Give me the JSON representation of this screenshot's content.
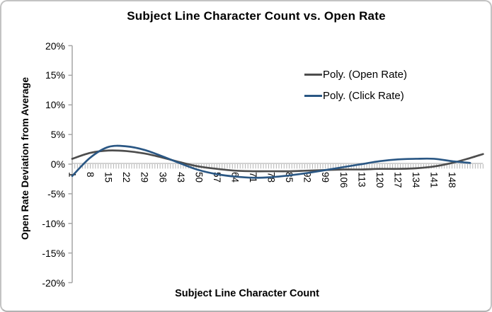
{
  "chart_data": {
    "type": "line",
    "title": "Subject Line Character Count vs. Open Rate",
    "xlabel": "Subject Line Character Count",
    "ylabel": "Open Rate Deviation from Average",
    "units": "percent deviation from average",
    "ylim": [
      -20,
      20
    ],
    "y_tick_step": 5,
    "y_ticks": [
      "20%",
      "15%",
      "10%",
      "5%",
      "0%",
      "-5%",
      "-10%",
      "-15%",
      "-20%"
    ],
    "x_tick_labels": [
      1,
      8,
      15,
      22,
      29,
      36,
      43,
      50,
      57,
      64,
      71,
      78,
      85,
      92,
      99,
      106,
      113,
      120,
      127,
      134,
      141,
      148
    ],
    "x_range": [
      1,
      160
    ],
    "x_label_rotation_deg": 90,
    "grid": false,
    "legend_position": "upper-right-inside",
    "axis_color": "#a6a6a6",
    "zero_line_color": "#c4c4c4",
    "minor_tick_color": "#b3b3b3",
    "series": [
      {
        "name": "Poly. (Open Rate)",
        "color": "#4d4d4d",
        "style": "polynomial-trendline",
        "x": [
          1,
          8,
          15,
          22,
          29,
          36,
          43,
          50,
          57,
          64,
          71,
          78,
          85,
          92,
          99,
          106,
          113,
          120,
          127,
          134,
          141,
          148,
          154,
          160
        ],
        "values": [
          0.9,
          1.9,
          2.3,
          2.2,
          1.8,
          1.1,
          0.3,
          -0.4,
          -0.8,
          -1.1,
          -1.2,
          -1.2,
          -1.2,
          -1.1,
          -1.0,
          -0.9,
          -0.9,
          -0.8,
          -0.8,
          -0.7,
          -0.4,
          0.2,
          0.9,
          1.7
        ]
      },
      {
        "name": "Poly. (Click Rate)",
        "color": "#2a5784",
        "style": "polynomial-trendline",
        "x": [
          1,
          8,
          15,
          22,
          29,
          36,
          43,
          50,
          57,
          64,
          71,
          78,
          85,
          92,
          99,
          106,
          113,
          120,
          127,
          134,
          141,
          148,
          155
        ],
        "values": [
          -2.0,
          1.1,
          2.9,
          3.0,
          2.4,
          1.3,
          0.1,
          -1.0,
          -1.7,
          -2.1,
          -2.3,
          -2.2,
          -1.9,
          -1.5,
          -1.0,
          -0.5,
          0.0,
          0.5,
          0.8,
          0.9,
          0.9,
          0.5,
          0.2
        ]
      }
    ]
  }
}
